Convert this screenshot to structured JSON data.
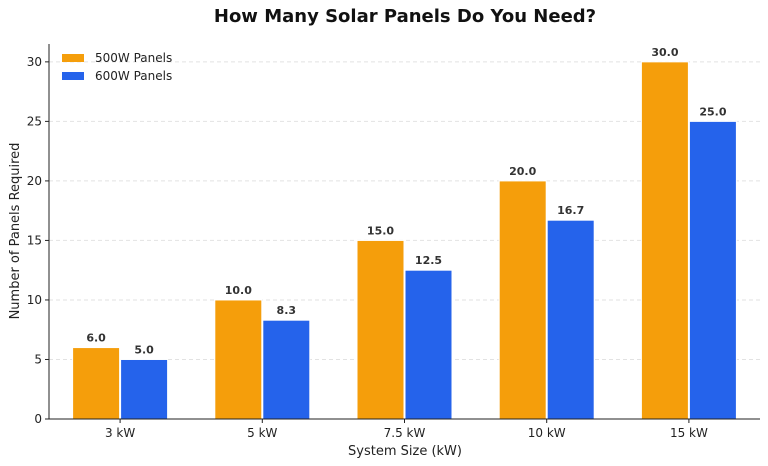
{
  "chart_data": {
    "type": "bar",
    "title": "How Many Solar Panels Do You Need?",
    "xlabel": "System Size (kW)",
    "ylabel": "Number of Panels Required",
    "categories": [
      "3 kW",
      "5 kW",
      "7.5 kW",
      "10 kW",
      "15 kW"
    ],
    "series": [
      {
        "name": "500W Panels",
        "color": "#F59E0B",
        "values": [
          6.0,
          10.0,
          15.0,
          20.0,
          30.0
        ],
        "labels": [
          "6.0",
          "10.0",
          "15.0",
          "20.0",
          "30.0"
        ]
      },
      {
        "name": "600W Panels",
        "color": "#2563EB",
        "values": [
          5.0,
          8.3,
          12.5,
          16.7,
          25.0
        ],
        "labels": [
          "5.0",
          "8.3",
          "12.5",
          "16.7",
          "25.0"
        ]
      }
    ],
    "ylim": [
      0,
      31.5
    ],
    "yticks": [
      0,
      5,
      10,
      15,
      20,
      25,
      30
    ],
    "grid": true,
    "legend_position": "top-left"
  }
}
